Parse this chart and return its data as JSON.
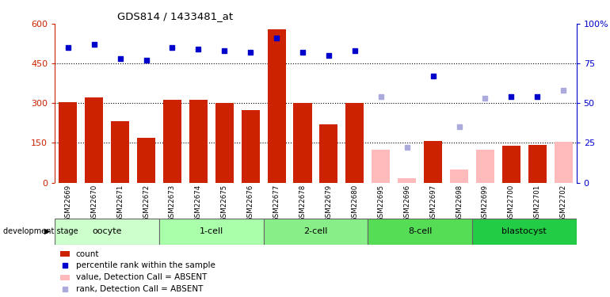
{
  "title": "GDS814 / 1433481_at",
  "samples": [
    "GSM22669",
    "GSM22670",
    "GSM22671",
    "GSM22672",
    "GSM22673",
    "GSM22674",
    "GSM22675",
    "GSM22676",
    "GSM22677",
    "GSM22678",
    "GSM22679",
    "GSM22680",
    "GSM22695",
    "GSM22696",
    "GSM22697",
    "GSM22698",
    "GSM22699",
    "GSM22700",
    "GSM22701",
    "GSM22702"
  ],
  "count_present": [
    305,
    323,
    232,
    170,
    313,
    313,
    302,
    275,
    578,
    300,
    220,
    302,
    null,
    null,
    158,
    null,
    null,
    138,
    143,
    null
  ],
  "count_absent": [
    null,
    null,
    null,
    null,
    null,
    null,
    null,
    null,
    null,
    null,
    null,
    null,
    125,
    18,
    null,
    50,
    125,
    null,
    null,
    155
  ],
  "rank_present_pct": [
    85,
    87,
    78,
    77,
    85,
    84,
    83,
    82,
    91,
    82,
    80,
    83,
    null,
    null,
    67,
    null,
    null,
    54,
    54,
    null
  ],
  "rank_absent_pct": [
    null,
    null,
    null,
    null,
    null,
    null,
    null,
    null,
    null,
    null,
    null,
    null,
    54,
    22,
    null,
    35,
    53,
    null,
    null,
    58
  ],
  "stages": [
    {
      "label": "oocyte",
      "start": 0,
      "end": 4,
      "color": "#ccffcc"
    },
    {
      "label": "1-cell",
      "start": 4,
      "end": 8,
      "color": "#aaffaa"
    },
    {
      "label": "2-cell",
      "start": 8,
      "end": 12,
      "color": "#88ee88"
    },
    {
      "label": "8-cell",
      "start": 12,
      "end": 16,
      "color": "#55dd55"
    },
    {
      "label": "blastocyst",
      "start": 16,
      "end": 20,
      "color": "#22cc44"
    }
  ],
  "ylim_left": [
    0,
    600
  ],
  "ylim_right": [
    0,
    100
  ],
  "yticks_left": [
    0,
    150,
    300,
    450,
    600
  ],
  "yticks_right": [
    0,
    25,
    50,
    75,
    100
  ],
  "ytick_right_labels": [
    "0",
    "25",
    "50",
    "75",
    "100%"
  ],
  "bar_color_present": "#cc2200",
  "bar_color_absent": "#ffbbbb",
  "dot_color_present": "#0000cc",
  "dot_color_absent": "#aaaadd",
  "bar_width": 0.7,
  "xticklabel_bg": "#cccccc",
  "legend_items": [
    {
      "label": "count",
      "color": "#cc2200",
      "type": "bar"
    },
    {
      "label": "percentile rank within the sample",
      "color": "#0000cc",
      "type": "dot"
    },
    {
      "label": "value, Detection Call = ABSENT",
      "color": "#ffbbbb",
      "type": "bar"
    },
    {
      "label": "rank, Detection Call = ABSENT",
      "color": "#aaaadd",
      "type": "dot"
    }
  ]
}
